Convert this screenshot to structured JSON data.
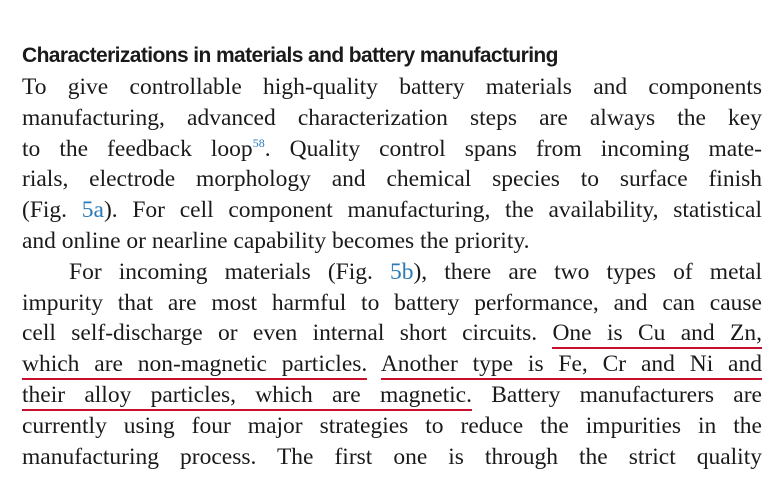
{
  "heading": "Characterizations in materials and battery manufacturing",
  "underline_color": "#c8102e",
  "link_color": "#2a7ab8",
  "paragraphs": [
    {
      "indent": false,
      "lines": [
        [
          {
            "text": "To give controllable high-quality battery materials and components"
          }
        ],
        [
          {
            "text": "manufacturing, advanced characterization steps are always the key"
          }
        ],
        [
          {
            "text": "to the feedback loop"
          },
          {
            "text": "58",
            "sup": true,
            "link": true
          },
          {
            "text": ". Quality control spans from incoming mate-"
          }
        ],
        [
          {
            "text": "rials, electrode morphology and chemical species to surface finish"
          }
        ],
        [
          {
            "text": "(Fig. "
          },
          {
            "text": "5a",
            "link": true
          },
          {
            "text": "). For cell component manufacturing, the availability, statistical"
          }
        ],
        [
          {
            "text": "and online or nearline capability becomes the priority."
          }
        ]
      ]
    },
    {
      "indent": true,
      "lines": [
        [
          {
            "text": "For incoming materials (Fig. "
          },
          {
            "text": "5b",
            "link": true
          },
          {
            "text": "), there are two types of metal"
          }
        ],
        [
          {
            "text": "impurity that are most harmful to battery performance, and can cause"
          }
        ],
        [
          {
            "text": "cell self-discharge or even internal short circuits. "
          },
          {
            "text": "One is Cu and Zn,",
            "underline": true
          }
        ],
        [
          {
            "text": "which are non-magnetic particles.",
            "underline": true
          },
          {
            "text": " "
          },
          {
            "text": "Another type is Fe, Cr and Ni and",
            "underline": true
          }
        ],
        [
          {
            "text": "their alloy particles, which are magnetic.",
            "underline": true
          },
          {
            "text": " Battery manufacturers are"
          }
        ],
        [
          {
            "text": "currently using four major strategies to reduce the impurities in the"
          }
        ],
        [
          {
            "text": "manufacturing process. The first one is through the strict quality"
          }
        ]
      ]
    }
  ]
}
